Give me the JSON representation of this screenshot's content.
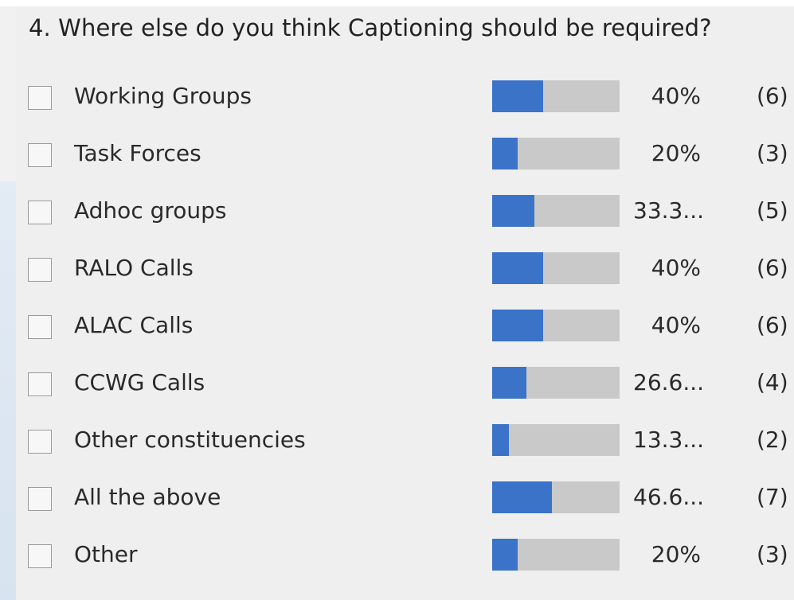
{
  "poll": {
    "question": "4. Where else do you think Captioning should be required?",
    "accent_color": "#3a73c8",
    "track_color": "#c9c9c9",
    "options": [
      {
        "label": "Working Groups",
        "percent_text": "40%",
        "count_text": "(6)",
        "fill_fraction": 0.4
      },
      {
        "label": "Task Forces",
        "percent_text": "20%",
        "count_text": "(3)",
        "fill_fraction": 0.2
      },
      {
        "label": "Adhoc groups",
        "percent_text": "33.3...",
        "count_text": "(5)",
        "fill_fraction": 0.333
      },
      {
        "label": "RALO Calls",
        "percent_text": "40%",
        "count_text": "(6)",
        "fill_fraction": 0.4
      },
      {
        "label": "ALAC Calls",
        "percent_text": "40%",
        "count_text": "(6)",
        "fill_fraction": 0.4
      },
      {
        "label": "CCWG Calls",
        "percent_text": "26.6...",
        "count_text": "(4)",
        "fill_fraction": 0.266
      },
      {
        "label": "Other constituencies",
        "percent_text": "13.3...",
        "count_text": "(2)",
        "fill_fraction": 0.133
      },
      {
        "label": "All the above",
        "percent_text": "46.6...",
        "count_text": "(7)",
        "fill_fraction": 0.466
      },
      {
        "label": "Other",
        "percent_text": "20%",
        "count_text": "(3)",
        "fill_fraction": 0.2
      }
    ]
  }
}
